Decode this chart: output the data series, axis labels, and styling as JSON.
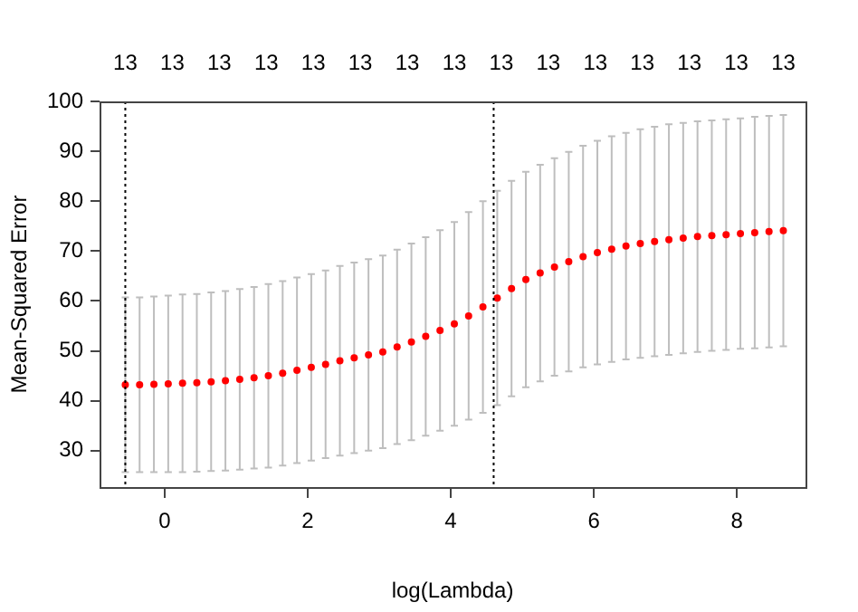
{
  "chart_data": {
    "type": "scatter",
    "xlabel": "log(Lambda)",
    "ylabel": "Mean-Squared Error",
    "xlim": [
      -0.91,
      8.96
    ],
    "xticks": [
      0,
      2,
      4,
      6,
      8
    ],
    "ylim": [
      22.7,
      100
    ],
    "yticks": [
      30,
      40,
      50,
      60,
      70,
      80,
      90,
      100
    ],
    "annotations": [
      "13",
      "13",
      "13",
      "13",
      "13",
      "13",
      "13",
      "13",
      "13",
      "13",
      "13",
      "13",
      "13",
      "13",
      "13"
    ],
    "x": [
      -0.55,
      -0.35,
      -0.15,
      0.05,
      0.25,
      0.45,
      0.65,
      0.85,
      1.05,
      1.25,
      1.45,
      1.65,
      1.85,
      2.05,
      2.25,
      2.45,
      2.65,
      2.85,
      3.05,
      3.25,
      3.45,
      3.65,
      3.85,
      4.05,
      4.25,
      4.45,
      4.65,
      4.85,
      5.05,
      5.25,
      5.45,
      5.65,
      5.85,
      6.05,
      6.25,
      6.45,
      6.65,
      6.85,
      7.05,
      7.25,
      7.45,
      7.65,
      7.85,
      8.05,
      8.25,
      8.45,
      8.65
    ],
    "values": [
      43.2,
      43.2,
      43.3,
      43.4,
      43.5,
      43.6,
      43.8,
      44.0,
      44.3,
      44.6,
      45.0,
      45.5,
      46.1,
      46.7,
      47.3,
      48.0,
      48.6,
      49.2,
      49.8,
      50.8,
      51.8,
      52.9,
      54.1,
      55.4,
      57.0,
      58.8,
      60.6,
      62.5,
      64.3,
      65.6,
      66.8,
      67.9,
      68.9,
      69.7,
      70.4,
      71.0,
      71.5,
      71.9,
      72.3,
      72.6,
      72.9,
      73.1,
      73.3,
      73.5,
      73.7,
      73.9,
      74.1
    ],
    "errors": [
      17.5,
      17.5,
      17.6,
      17.7,
      17.8,
      17.8,
      17.9,
      18.0,
      18.1,
      18.2,
      18.4,
      18.5,
      18.6,
      18.7,
      18.8,
      19.0,
      19.1,
      19.2,
      19.3,
      19.5,
      19.7,
      19.9,
      20.1,
      20.4,
      20.8,
      21.2,
      21.5,
      21.6,
      21.6,
      21.7,
      21.8,
      22.0,
      22.2,
      22.4,
      22.6,
      22.7,
      22.9,
      23.0,
      23.1,
      23.1,
      23.1,
      23.1,
      23.1,
      23.1,
      23.2,
      23.2,
      23.2
    ],
    "color": "#ff0000",
    "marker": "circle",
    "ref_lines": [
      {
        "axis": "x",
        "value": -0.55,
        "color": "#000000",
        "line_style": "dotted"
      },
      {
        "axis": "x",
        "value": 4.6,
        "color": "#000000",
        "line_style": "dotted"
      }
    ]
  }
}
